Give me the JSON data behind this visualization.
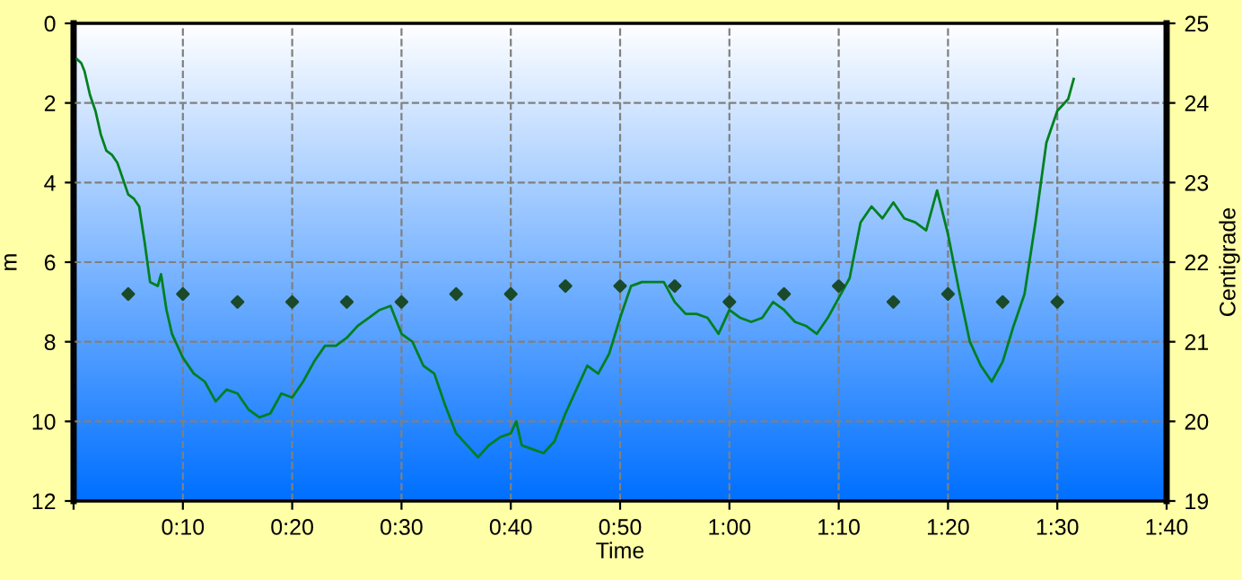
{
  "chart_data": {
    "type": "line",
    "xlabel": "Time",
    "ylabel": "m",
    "y2label": "Centigrade",
    "xlim": [
      0,
      100
    ],
    "xticks": [
      {
        "value": 0,
        "label": null
      },
      {
        "value": 10,
        "label": "0:10"
      },
      {
        "value": 20,
        "label": "0:20"
      },
      {
        "value": 30,
        "label": "0:30"
      },
      {
        "value": 40,
        "label": "0:40"
      },
      {
        "value": 50,
        "label": "0:50"
      },
      {
        "value": 60,
        "label": "1:00"
      },
      {
        "value": 70,
        "label": "1:10"
      },
      {
        "value": 80,
        "label": "1:20"
      },
      {
        "value": 90,
        "label": "1:30"
      },
      {
        "value": 100,
        "label": "1:40"
      }
    ],
    "ylim": [
      12,
      0
    ],
    "yticks": [
      0,
      2,
      4,
      6,
      8,
      10,
      12
    ],
    "y2lim": [
      19,
      25
    ],
    "y2ticks": [
      19,
      20,
      21,
      22,
      23,
      24,
      25
    ],
    "grid": true,
    "line_style": "solid",
    "series": [
      {
        "color": "#008020",
        "marker": "none",
        "x": [
          0.3,
          0.7,
          1,
          1.5,
          2,
          2.5,
          3,
          3.5,
          4,
          4.5,
          5,
          5.5,
          6,
          6.5,
          7,
          7.7,
          8,
          8.5,
          9,
          10,
          11,
          12,
          13,
          14,
          15,
          16,
          17,
          18,
          19,
          20,
          21,
          22,
          23,
          24,
          25,
          26,
          27,
          28,
          29,
          30,
          31,
          32,
          33,
          34,
          35,
          36,
          37,
          38,
          39,
          40,
          40.5,
          41,
          42,
          43,
          44,
          45,
          46,
          47,
          48,
          49,
          50,
          51,
          52,
          53,
          54,
          55,
          56,
          57,
          58,
          59,
          60,
          61,
          62,
          63,
          64,
          65,
          66,
          67,
          68,
          69,
          70,
          71,
          72,
          73,
          74,
          75,
          76,
          77,
          78,
          79,
          80,
          81,
          82,
          83,
          84,
          85,
          86,
          87,
          88,
          89,
          90,
          91,
          91.5
        ],
        "values": [
          0.9,
          1.0,
          1.2,
          1.8,
          2.2,
          2.8,
          3.2,
          3.3,
          3.5,
          3.9,
          4.3,
          4.4,
          4.6,
          5.5,
          6.5,
          6.6,
          6.3,
          7.2,
          7.8,
          8.4,
          8.8,
          9.0,
          9.5,
          9.2,
          9.3,
          9.7,
          9.9,
          9.8,
          9.3,
          9.4,
          9.0,
          8.5,
          8.1,
          8.1,
          7.9,
          7.6,
          7.4,
          7.2,
          7.1,
          7.8,
          8.0,
          8.6,
          8.8,
          9.6,
          10.3,
          10.6,
          10.9,
          10.6,
          10.4,
          10.3,
          10.0,
          10.6,
          10.7,
          10.8,
          10.5,
          9.8,
          9.2,
          8.6,
          8.8,
          8.3,
          7.4,
          6.6,
          6.5,
          6.5,
          6.5,
          7.0,
          7.3,
          7.3,
          7.4,
          7.8,
          7.2,
          7.4,
          7.5,
          7.4,
          7.0,
          7.2,
          7.5,
          7.6,
          7.8,
          7.4,
          6.9,
          6.4,
          5.0,
          4.6,
          4.9,
          4.5,
          4.9,
          5.0,
          5.2,
          4.2,
          5.3,
          6.7,
          8.0,
          8.6,
          9.0,
          8.5,
          7.6,
          6.8,
          5.0,
          3.0,
          2.2,
          1.9,
          1.4
        ]
      },
      {
        "type": "scatter",
        "axis": "y2",
        "color": "#1a4a2a",
        "marker": "diamond",
        "x": [
          5,
          10,
          15,
          20,
          25,
          30,
          35,
          40,
          45,
          50,
          55,
          60,
          65,
          70,
          75,
          80,
          85,
          90
        ],
        "values": [
          21.6,
          21.6,
          21.5,
          21.5,
          21.5,
          21.5,
          21.6,
          21.6,
          21.7,
          21.7,
          21.7,
          21.5,
          21.6,
          21.7,
          21.5,
          21.6,
          21.5,
          21.5
        ]
      }
    ]
  }
}
